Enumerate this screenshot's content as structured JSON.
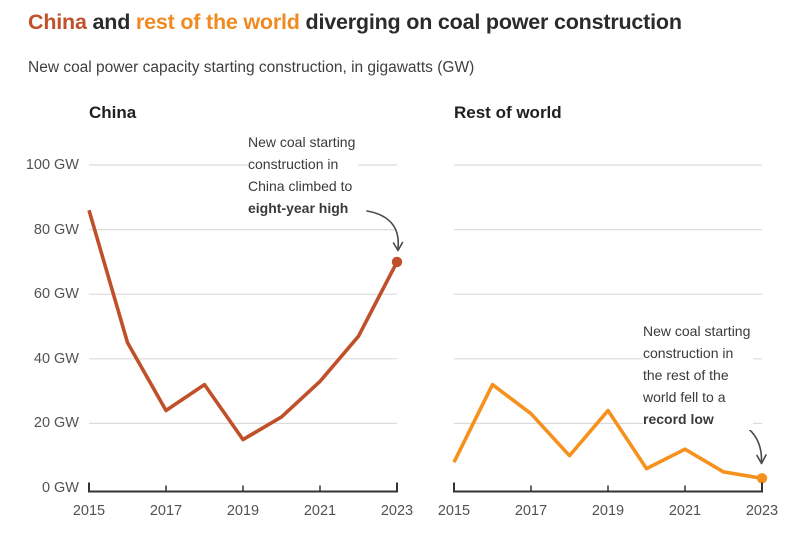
{
  "title": {
    "part_china": "China",
    "part_and": " and ",
    "part_row": "rest of the world",
    "part_rest": " diverging on coal power construction"
  },
  "subtitle": "New coal power capacity starting construction, in gigawatts (GW)",
  "colors": {
    "china_line": "#c0502a",
    "row_line": "#f6911e",
    "title_china": "#c0512b",
    "title_row": "#ef8b22",
    "grid": "#dcdcdc",
    "axis": "#333333",
    "tick_label": "#525252",
    "annotation_text": "#3a3a3a",
    "arrow": "#4a4a4a"
  },
  "y_axis": {
    "unit": "GW",
    "ticks": [
      {
        "value": 0,
        "label": "0 GW"
      },
      {
        "value": 20,
        "label": "20 GW"
      },
      {
        "value": 40,
        "label": "40 GW"
      },
      {
        "value": 60,
        "label": "60 GW"
      },
      {
        "value": 80,
        "label": "80 GW"
      },
      {
        "value": 100,
        "label": "100 GW"
      }
    ],
    "range": [
      0,
      100
    ]
  },
  "x_axis": {
    "tick_years": [
      2015,
      2017,
      2019,
      2021,
      2023
    ],
    "tick_labels": [
      "2015",
      "2017",
      "2019",
      "2021",
      "2023"
    ],
    "range": [
      2015,
      2023
    ]
  },
  "chart_data": [
    {
      "type": "line",
      "title": "China",
      "color": "#c0502a",
      "x": [
        2015,
        2016,
        2017,
        2018,
        2019,
        2020,
        2021,
        2022,
        2023
      ],
      "values": [
        86,
        45,
        24,
        32,
        15,
        22,
        33,
        47,
        70
      ],
      "end_dot": true,
      "ylim": [
        0,
        100
      ],
      "grid": true,
      "annotation": {
        "lines": [
          "New coal starting",
          "construction in",
          "China climbed to"
        ],
        "bold_line": "eight-year high"
      }
    },
    {
      "type": "line",
      "title": "Rest of world",
      "color": "#f6911e",
      "x": [
        2015,
        2016,
        2017,
        2018,
        2019,
        2020,
        2021,
        2022,
        2023
      ],
      "values": [
        8,
        32,
        23,
        10,
        24,
        6,
        12,
        5,
        3
      ],
      "end_dot": true,
      "ylim": [
        0,
        100
      ],
      "grid": true,
      "annotation": {
        "lines": [
          "New coal starting",
          "construction in",
          "the rest of the",
          "world fell to a"
        ],
        "bold_line": "record low"
      }
    }
  ]
}
